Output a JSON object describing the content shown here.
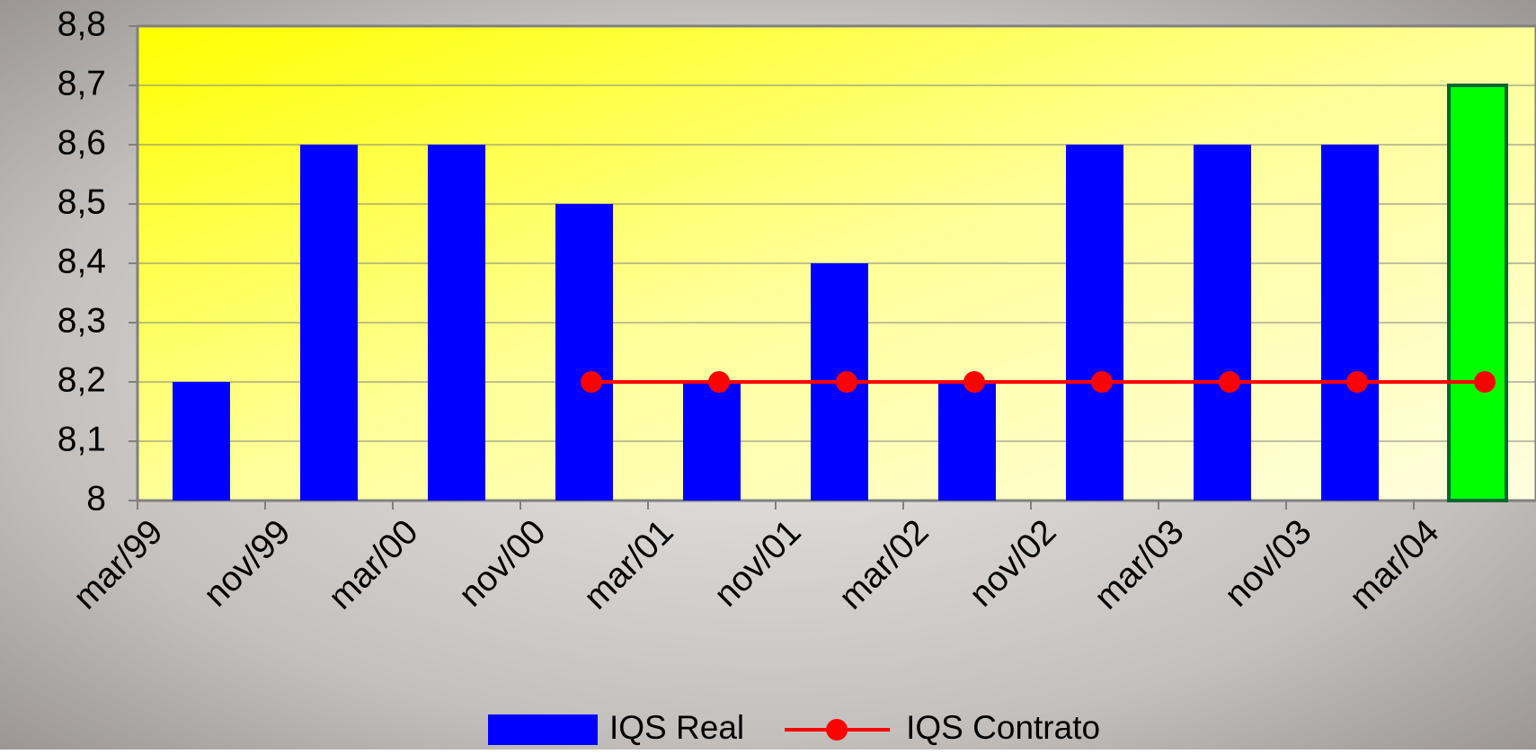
{
  "chart_data": {
    "type": "bar",
    "categories": [
      "mar/99",
      "nov/99",
      "mar/00",
      "nov/00",
      "mar/01",
      "nov/01",
      "mar/02",
      "nov/02",
      "mar/03",
      "nov/03",
      "mar/04"
    ],
    "series": [
      {
        "name": "IQS Real",
        "type": "bar",
        "color": "#0000ff",
        "point_colors": [
          "#0000ff",
          "#0000ff",
          "#0000ff",
          "#0000ff",
          "#0000ff",
          "#0000ff",
          "#0000ff",
          "#0000ff",
          "#0000ff",
          "#0000ff",
          "#00ff00"
        ],
        "values": [
          8.2,
          8.6,
          8.6,
          8.5,
          8.2,
          8.4,
          8.2,
          8.6,
          8.6,
          8.6,
          8.7
        ]
      },
      {
        "name": "IQS Contrato",
        "type": "line",
        "color": "#ff0000",
        "values": [
          null,
          null,
          null,
          8.2,
          8.2,
          8.2,
          8.2,
          8.2,
          8.2,
          8.2,
          8.2
        ]
      }
    ],
    "ylim": [
      8,
      8.8
    ],
    "yticks": [
      8,
      {
        "value": 8.1,
        "label": "8,1"
      },
      {
        "value": 8.2,
        "label": "8,2"
      },
      {
        "value": 8.3,
        "label": "8,3"
      },
      {
        "value": 8.4,
        "label": "8,4"
      },
      {
        "value": 8.5,
        "label": "8,5"
      },
      {
        "value": 8.6,
        "label": "8,6"
      },
      {
        "value": 8.7,
        "label": "8,7"
      },
      {
        "value": 8.8,
        "label": "8,8"
      }
    ],
    "grid": true,
    "legend": "bottom"
  }
}
